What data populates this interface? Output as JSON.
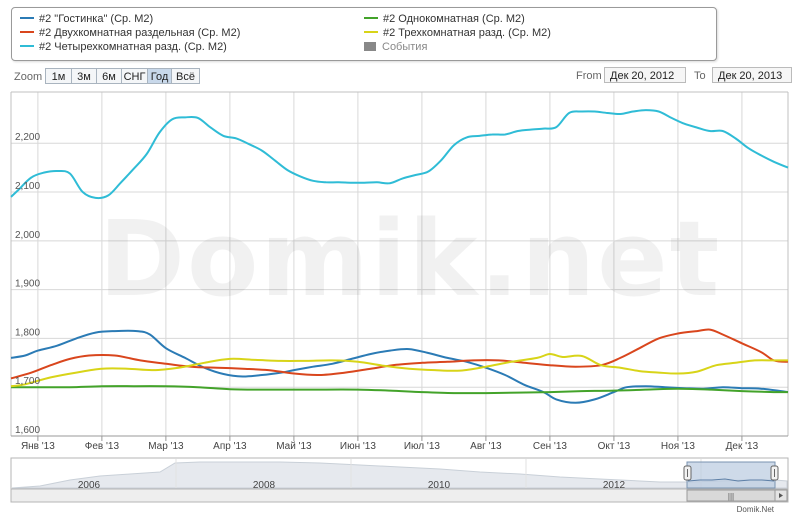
{
  "legend": {
    "items": [
      {
        "label": "#2 \"Гостинка\" (Ср. М2)",
        "color": "#2b7bb5"
      },
      {
        "label": "#2 Однокомнатная (Ср. М2)",
        "color": "#43a32a"
      },
      {
        "label": "#2 Двухкомнатная раздельная (Ср. М2)",
        "color": "#d9461d"
      },
      {
        "label": "#2 Трехкомнатная разд. (Ср. М2)",
        "color": "#d8d418"
      },
      {
        "label": "#2 Четырехкомнатная разд. (Ср. М2)",
        "color": "#2fbcd6"
      },
      {
        "label": "События",
        "color": "#888888"
      }
    ]
  },
  "zoom": {
    "label": "Zoom",
    "buttons": [
      "1м",
      "3м",
      "6м",
      "СНГ",
      "Год",
      "Всё"
    ],
    "active": "Год"
  },
  "range": {
    "from_label": "From",
    "from_value": "Дек 20, 2012",
    "to_label": "To",
    "to_value": "Дек 20, 2013"
  },
  "watermark": "Domik.net",
  "credit": "Domik.Net",
  "chart_data": {
    "type": "line",
    "x_ticks": [
      "Янв '13",
      "Фев '13",
      "Мар '13",
      "Апр '13",
      "Май '13",
      "Июн '13",
      "Июл '13",
      "Авг '13",
      "Сен '13",
      "Окт '13",
      "Ноя '13",
      "Дек '13"
    ],
    "y_ticks": [
      "1,600",
      "1,700",
      "1,800",
      "1,900",
      "2,000",
      "2,100",
      "2,200"
    ],
    "ylim": [
      1600,
      2305
    ],
    "xlim": [
      -0.42,
      11.72
    ],
    "grid": true,
    "legend_position": "top",
    "series": [
      {
        "name": "#2 \"Гостинка\" (Ср. М2)",
        "color": "#2b7bb5",
        "x": [
          -0.42,
          -0.2,
          0,
          0.3,
          0.6,
          0.9,
          1.2,
          1.55,
          1.75,
          2.0,
          2.3,
          2.6,
          2.9,
          3.2,
          3.5,
          3.8,
          4.0,
          4.3,
          4.6,
          4.9,
          5.2,
          5.5,
          5.8,
          6.1,
          6.4,
          6.7,
          7.0,
          7.3,
          7.6,
          7.9,
          8.1,
          8.4,
          8.7,
          9.0,
          9.2,
          9.5,
          9.8,
          10.1,
          10.4,
          10.7,
          11.0,
          11.3,
          11.72
        ],
        "y": [
          1760,
          1765,
          1775,
          1785,
          1800,
          1812,
          1815,
          1815,
          1808,
          1780,
          1760,
          1740,
          1727,
          1722,
          1725,
          1730,
          1735,
          1742,
          1748,
          1758,
          1768,
          1775,
          1778,
          1770,
          1760,
          1752,
          1740,
          1725,
          1705,
          1690,
          1675,
          1668,
          1675,
          1690,
          1700,
          1702,
          1700,
          1698,
          1697,
          1700,
          1698,
          1697,
          1690
        ]
      },
      {
        "name": "#2 Однокомнатная (Ср. М2)",
        "color": "#43a32a",
        "x": [
          -0.42,
          0,
          0.5,
          1.0,
          1.5,
          2.0,
          2.5,
          3.0,
          3.5,
          4.0,
          4.5,
          5.0,
          5.5,
          6.0,
          6.5,
          7.0,
          7.5,
          8.0,
          8.5,
          9.0,
          9.5,
          10.0,
          10.5,
          11.0,
          11.5,
          11.72
        ],
        "y": [
          1700,
          1700,
          1700,
          1702,
          1702,
          1702,
          1700,
          1696,
          1695,
          1695,
          1695,
          1695,
          1693,
          1690,
          1688,
          1688,
          1689,
          1690,
          1692,
          1693,
          1695,
          1697,
          1695,
          1692,
          1690,
          1690
        ]
      },
      {
        "name": "#2 Двухкомнатная раздельная (Ср. М2)",
        "color": "#d9461d",
        "x": [
          -0.42,
          -0.1,
          0.2,
          0.5,
          0.8,
          1.2,
          1.6,
          2.0,
          2.4,
          2.8,
          3.2,
          3.6,
          4.0,
          4.4,
          4.8,
          5.2,
          5.6,
          6.0,
          6.4,
          6.8,
          7.2,
          7.6,
          8.0,
          8.4,
          8.8,
          9.1,
          9.4,
          9.7,
          10.0,
          10.3,
          10.5,
          10.7,
          11.0,
          11.3,
          11.5,
          11.72
        ],
        "y": [
          1718,
          1730,
          1745,
          1758,
          1765,
          1765,
          1755,
          1748,
          1742,
          1740,
          1738,
          1735,
          1728,
          1725,
          1730,
          1738,
          1746,
          1750,
          1752,
          1755,
          1755,
          1750,
          1745,
          1742,
          1745,
          1760,
          1780,
          1800,
          1810,
          1815,
          1818,
          1808,
          1790,
          1772,
          1755,
          1752
        ]
      },
      {
        "name": "#2 Трехкомнатная разд. (Ср. М2)",
        "color": "#d8d418",
        "x": [
          -0.42,
          -0.2,
          0.2,
          0.6,
          1.0,
          1.4,
          1.8,
          2.2,
          2.6,
          3.0,
          3.4,
          3.8,
          4.2,
          4.6,
          5.0,
          5.4,
          5.8,
          6.2,
          6.6,
          7.0,
          7.4,
          7.8,
          8.0,
          8.2,
          8.5,
          8.8,
          9.1,
          9.4,
          9.7,
          10.0,
          10.3,
          10.6,
          10.9,
          11.2,
          11.5,
          11.72
        ],
        "y": [
          1702,
          1706,
          1720,
          1730,
          1738,
          1738,
          1735,
          1740,
          1750,
          1758,
          1756,
          1754,
          1754,
          1755,
          1752,
          1744,
          1738,
          1735,
          1734,
          1742,
          1752,
          1760,
          1768,
          1762,
          1764,
          1745,
          1740,
          1733,
          1730,
          1728,
          1732,
          1745,
          1750,
          1755,
          1755,
          1755
        ]
      },
      {
        "name": "#2 Четырехкомнатная разд. (Ср. М2)",
        "color": "#2fbcd6",
        "x": [
          -0.42,
          -0.3,
          -0.1,
          0.1,
          0.3,
          0.5,
          0.7,
          0.9,
          1.1,
          1.3,
          1.5,
          1.7,
          1.9,
          2.1,
          2.3,
          2.5,
          2.7,
          2.9,
          3.1,
          3.3,
          3.5,
          3.7,
          3.9,
          4.1,
          4.3,
          4.5,
          4.7,
          4.9,
          5.1,
          5.3,
          5.5,
          5.7,
          5.9,
          6.1,
          6.3,
          6.5,
          6.7,
          6.9,
          7.1,
          7.3,
          7.5,
          7.7,
          7.9,
          8.1,
          8.3,
          8.5,
          8.7,
          8.9,
          9.1,
          9.3,
          9.5,
          9.7,
          9.9,
          10.1,
          10.3,
          10.5,
          10.7,
          10.9,
          11.1,
          11.3,
          11.5,
          11.72
        ],
        "y": [
          2090,
          2105,
          2130,
          2140,
          2143,
          2138,
          2100,
          2088,
          2093,
          2120,
          2148,
          2178,
          2222,
          2249,
          2253,
          2252,
          2232,
          2215,
          2210,
          2198,
          2185,
          2165,
          2145,
          2132,
          2123,
          2120,
          2120,
          2119,
          2119,
          2120,
          2118,
          2128,
          2135,
          2142,
          2165,
          2196,
          2212,
          2215,
          2218,
          2218,
          2225,
          2228,
          2230,
          2233,
          2262,
          2265,
          2265,
          2262,
          2260,
          2265,
          2268,
          2265,
          2252,
          2240,
          2232,
          2225,
          2225,
          2210,
          2190,
          2175,
          2162,
          2150
        ]
      }
    ]
  },
  "navigator": {
    "ticks": [
      "2006",
      "2008",
      "2010",
      "2012"
    ],
    "scroll_glyph": "|||"
  }
}
